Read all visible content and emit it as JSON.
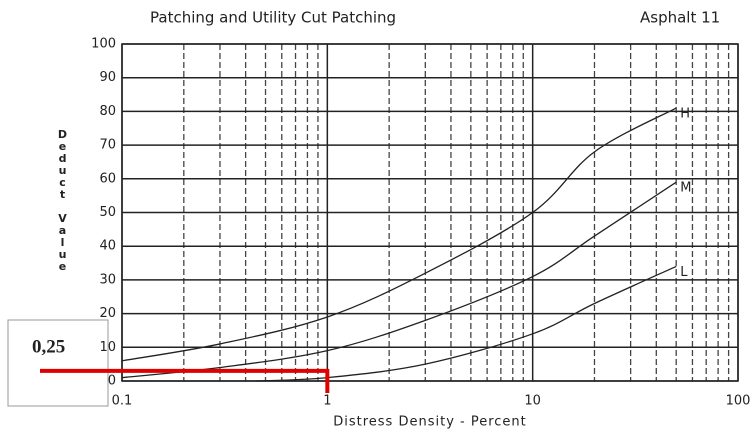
{
  "chart_data": {
    "type": "line",
    "title": "Patching and Utility Cut Patching",
    "subtitle": "Asphalt 11",
    "xlabel": "Distress Density - Percent",
    "ylabel": "Deduct Value",
    "log_x": true,
    "grid": true,
    "xlim": [
      0.1,
      100
    ],
    "ylim": [
      0,
      100
    ],
    "xticks": [
      0.1,
      1,
      10,
      100
    ],
    "yticks": [
      0,
      10,
      20,
      30,
      40,
      50,
      60,
      70,
      80,
      90,
      100
    ],
    "series": [
      {
        "name": "H",
        "color": "#222222",
        "x": [
          0.1,
          0.3,
          1,
          3,
          10,
          20,
          50
        ],
        "values": [
          6,
          11,
          19,
          32,
          50,
          68,
          81
        ]
      },
      {
        "name": "M",
        "color": "#222222",
        "x": [
          0.1,
          0.3,
          1,
          3,
          10,
          20,
          50
        ],
        "values": [
          1,
          4,
          9,
          18,
          31,
          43,
          59
        ]
      },
      {
        "name": "L",
        "color": "#222222",
        "x": [
          0.45,
          1,
          3,
          10,
          20,
          50
        ],
        "values": [
          0,
          1,
          5,
          14,
          23,
          34
        ]
      }
    ],
    "annotation": {
      "label": "0,25",
      "x": 1,
      "y": 3,
      "color": "#e00000"
    }
  }
}
